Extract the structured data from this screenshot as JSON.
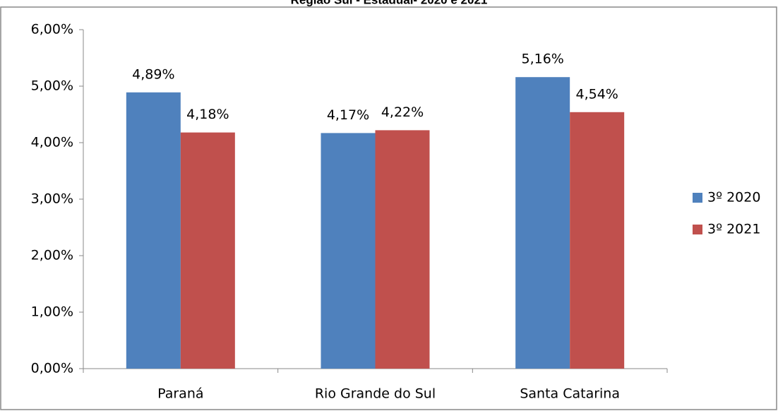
{
  "chart_data": {
    "type": "bar",
    "title": "Região Sul - Estadual- 2020 e 2021",
    "categories": [
      "Paraná",
      "Rio Grande do Sul",
      "Santa Catarina"
    ],
    "series": [
      {
        "name": "3º 2020",
        "color": "#4f81bd",
        "values": [
          4.89,
          4.17,
          5.16
        ],
        "value_labels": [
          "4,89%",
          "4,17%",
          "5,16%"
        ]
      },
      {
        "name": "3º 2021",
        "color": "#c0504d",
        "values": [
          4.18,
          4.22,
          4.54
        ],
        "value_labels": [
          "4,18%",
          "4,22%",
          "4,54%"
        ]
      }
    ],
    "ylim": [
      0,
      6
    ],
    "yticks": [
      {
        "value": 0,
        "label": "0,00%"
      },
      {
        "value": 1,
        "label": "1,00%"
      },
      {
        "value": 2,
        "label": "2,00%"
      },
      {
        "value": 3,
        "label": "3,00%"
      },
      {
        "value": 4,
        "label": "4,00%"
      },
      {
        "value": 5,
        "label": "5,00%"
      },
      {
        "value": 6,
        "label": "6,00%"
      }
    ],
    "grid": false,
    "legend": "right"
  }
}
